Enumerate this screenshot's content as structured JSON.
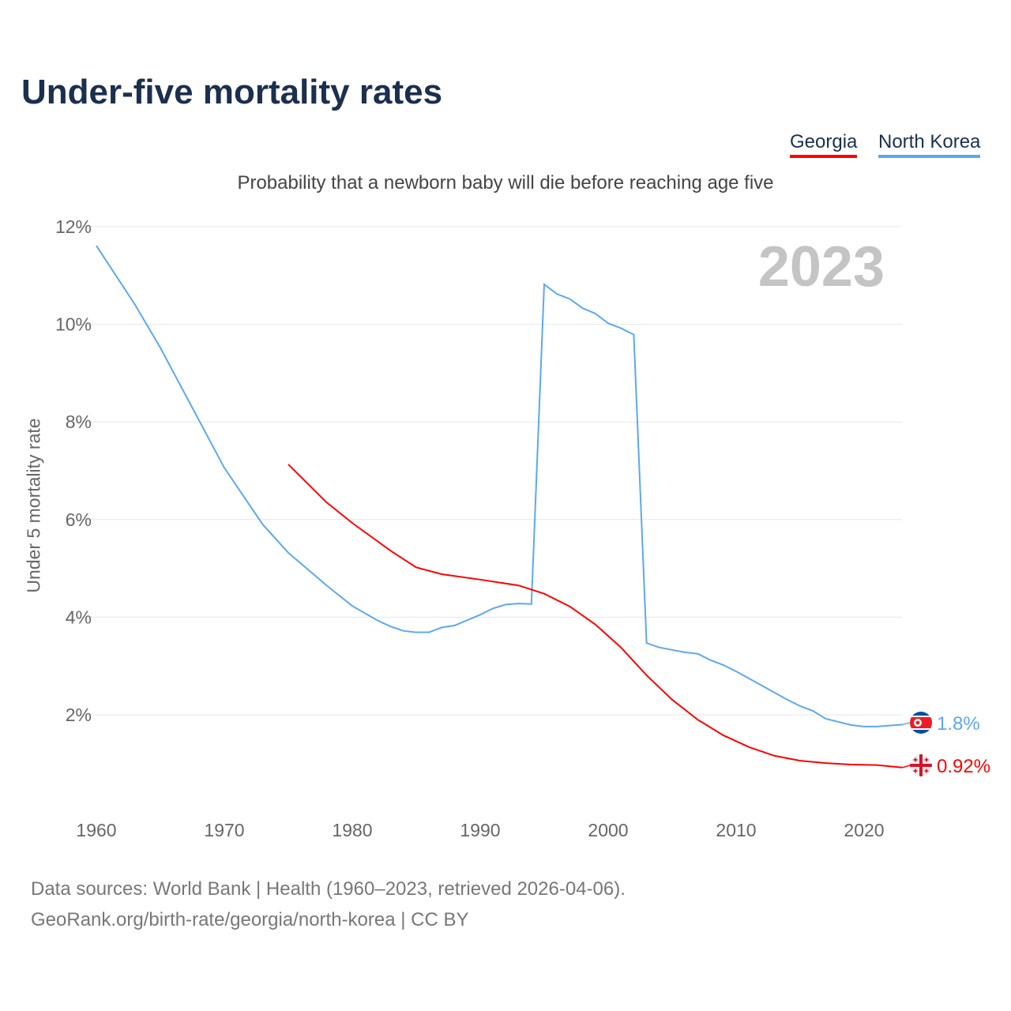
{
  "title": "Under-five mortality rates",
  "legend": [
    {
      "name": "Georgia",
      "color": "#ff0000"
    },
    {
      "name": "North Korea",
      "color": "#5ca8ee"
    }
  ],
  "footer": {
    "line1": "Data sources: World Bank | Health (1960–2023, retrieved 2026-04-06).",
    "line2": "GeoRank.org/birth-rate/georgia/north-korea | CC BY"
  },
  "chart_data": {
    "type": "line",
    "title": "Under-five mortality rates",
    "subtitle": "Probability that a newborn baby will die before reaching age five",
    "ylabel": "Under 5 mortality rate",
    "xlabel": "",
    "year_label": "2023",
    "xlim": [
      1960,
      2023
    ],
    "ylim": [
      0,
      12
    ],
    "xticks": [
      1960,
      1970,
      1980,
      1990,
      2000,
      2010,
      2020
    ],
    "yticks": [
      {
        "v": 2,
        "label": "2%"
      },
      {
        "v": 4,
        "label": "4%"
      },
      {
        "v": 6,
        "label": "6%"
      },
      {
        "v": 8,
        "label": "8%"
      },
      {
        "v": 10,
        "label": "10%"
      },
      {
        "v": 12,
        "label": "12%"
      }
    ],
    "grid": true,
    "series": [
      {
        "name": "North Korea",
        "color": "#5ca8ee",
        "end_label": "1.8%",
        "flag": "north-korea",
        "x": [
          1960,
          1963,
          1965,
          1970,
          1973,
          1975,
          1978,
          1980,
          1982,
          1983,
          1984,
          1985,
          1986,
          1987,
          1988,
          1990,
          1991,
          1992,
          1993,
          1994,
          1995,
          1996,
          1997,
          1998,
          1999,
          2000,
          2001,
          2002,
          2003,
          2004,
          2005,
          2006,
          2007,
          2008,
          2009,
          2010,
          2012,
          2014,
          2015,
          2016,
          2017,
          2019,
          2020,
          2021,
          2023
        ],
        "y": [
          11.61,
          10.41,
          9.52,
          7.06,
          5.9,
          5.32,
          4.65,
          4.23,
          3.93,
          3.81,
          3.72,
          3.69,
          3.69,
          3.79,
          3.83,
          4.05,
          4.18,
          4.26,
          4.28,
          4.27,
          10.82,
          10.62,
          10.52,
          10.33,
          10.22,
          10.02,
          9.92,
          9.79,
          3.47,
          3.38,
          3.33,
          3.28,
          3.25,
          3.12,
          3.02,
          2.89,
          2.6,
          2.31,
          2.18,
          2.08,
          1.92,
          1.79,
          1.76,
          1.76,
          1.8
        ]
      },
      {
        "name": "Georgia",
        "color": "#ff0000",
        "end_label": "0.92%",
        "flag": "georgia",
        "x": [
          1975,
          1978,
          1980,
          1983,
          1985,
          1987,
          1990,
          1993,
          1995,
          1997,
          1999,
          2001,
          2003,
          2005,
          2007,
          2009,
          2011,
          2013,
          2015,
          2017,
          2019,
          2021,
          2023
        ],
        "y": [
          7.13,
          6.35,
          5.93,
          5.36,
          5.02,
          4.88,
          4.77,
          4.65,
          4.48,
          4.22,
          3.85,
          3.38,
          2.81,
          2.31,
          1.9,
          1.58,
          1.34,
          1.16,
          1.06,
          1.01,
          0.98,
          0.97,
          0.92
        ]
      }
    ]
  }
}
